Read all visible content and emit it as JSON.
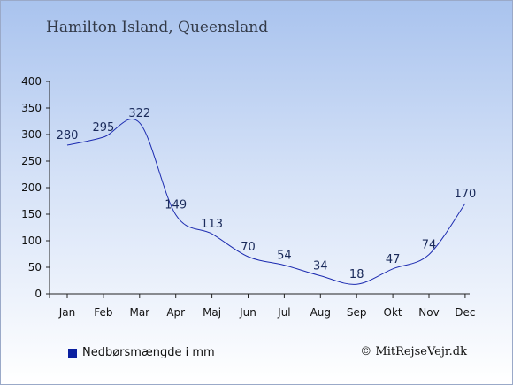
{
  "title": "Hamilton Island, Queensland",
  "legend": {
    "label": "Nedbørsmængde i mm",
    "color": "#0a1fa0"
  },
  "copyright": "© MitRejseVejr.dk",
  "chart_data": {
    "type": "line",
    "categories": [
      "Jan",
      "Feb",
      "Mar",
      "Apr",
      "Maj",
      "Jun",
      "Jul",
      "Aug",
      "Sep",
      "Okt",
      "Nov",
      "Dec"
    ],
    "series": [
      {
        "name": "Nedbørsmængde i mm",
        "values": [
          280,
          295,
          322,
          149,
          113,
          70,
          54,
          34,
          18,
          47,
          74,
          170
        ],
        "color": "#1c2bb0"
      }
    ],
    "ylim": [
      0,
      400
    ],
    "yticks": [
      0,
      50,
      100,
      150,
      200,
      250,
      300,
      350,
      400
    ],
    "grid": false,
    "data_labels": true,
    "legend_position": "bottom-left"
  }
}
